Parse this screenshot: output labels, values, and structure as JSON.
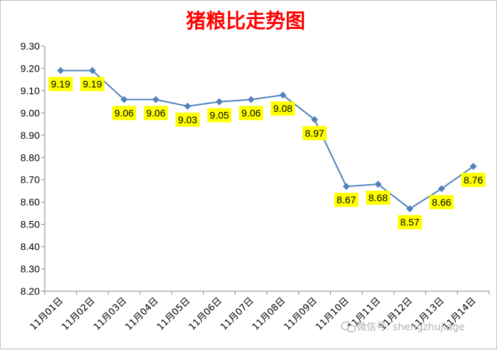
{
  "chart_data": {
    "type": "line",
    "title": "猪粮比走势图",
    "categories": [
      "11月01日",
      "11月02日",
      "11月03日",
      "11月04日",
      "11月05日",
      "11月06日",
      "11月07日",
      "11月08日",
      "11月09日",
      "11月10日",
      "11月11日",
      "11月12日",
      "11月13日",
      "11月14日"
    ],
    "series": [
      {
        "values": [
          9.19,
          9.19,
          9.06,
          9.06,
          9.03,
          9.05,
          9.06,
          9.08,
          8.97,
          8.67,
          8.68,
          8.57,
          8.66,
          8.76
        ],
        "labels": [
          "9.19",
          "9.19",
          "9.06",
          "9.06",
          "9.03",
          "9.05",
          "9.06",
          "9.08",
          "8.97",
          "8.67",
          "8.68",
          "8.57",
          "8.66",
          "8.76"
        ],
        "color": "#4f81bd"
      }
    ],
    "ylim": [
      8.2,
      9.3
    ],
    "yticks": [
      "9.30",
      "9.20",
      "9.10",
      "9.00",
      "8.90",
      "8.80",
      "8.70",
      "8.60",
      "8.50",
      "8.40",
      "8.30",
      "8.20"
    ],
    "label_color": "#ffff00",
    "grid": false,
    "legend": "none"
  },
  "watermark": {
    "icon": "wechat-icon",
    "text": "微信号: shengzhujiage"
  }
}
